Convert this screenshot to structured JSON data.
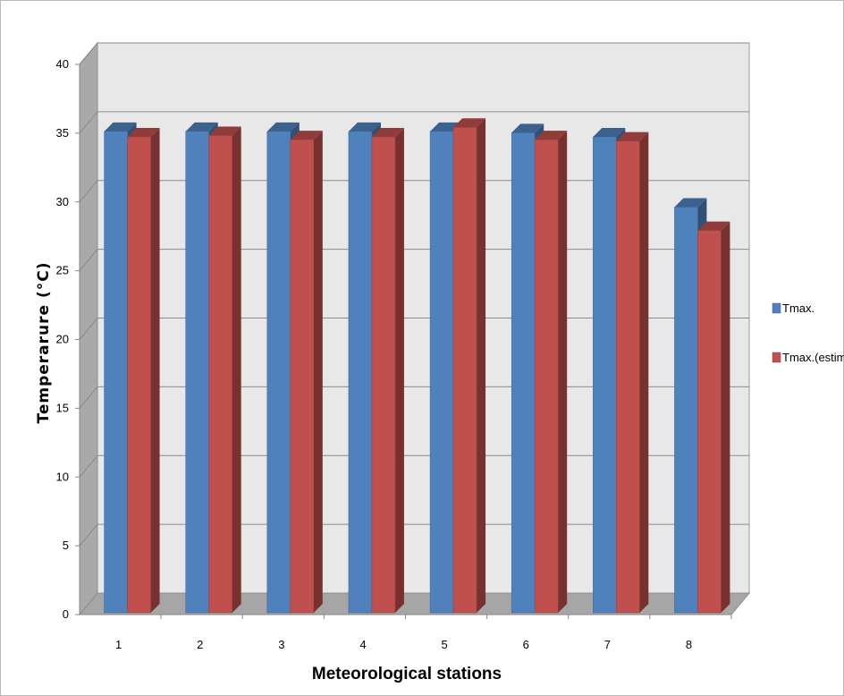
{
  "chart_data": {
    "type": "bar",
    "title": "",
    "xlabel": "Meteorological stations",
    "ylabel": "Temperarure (°C)",
    "ylim": [
      0,
      40
    ],
    "yticks": [
      0,
      5,
      10,
      15,
      20,
      25,
      30,
      35,
      40
    ],
    "categories": [
      "1",
      "2",
      "3",
      "4",
      "5",
      "6",
      "7",
      "8"
    ],
    "series": [
      {
        "name": "Tmax.",
        "color": "#4f81bd",
        "values": [
          35.0,
          35.0,
          35.0,
          35.0,
          35.0,
          34.9,
          34.6,
          29.5
        ]
      },
      {
        "name": "Tmax.(estim.)",
        "color": "#c0504d",
        "values": [
          34.6,
          34.7,
          34.4,
          34.6,
          35.3,
          34.4,
          34.3,
          27.8
        ]
      }
    ],
    "grid": true,
    "legend_position": "right",
    "style": "3d-clustered-column"
  }
}
